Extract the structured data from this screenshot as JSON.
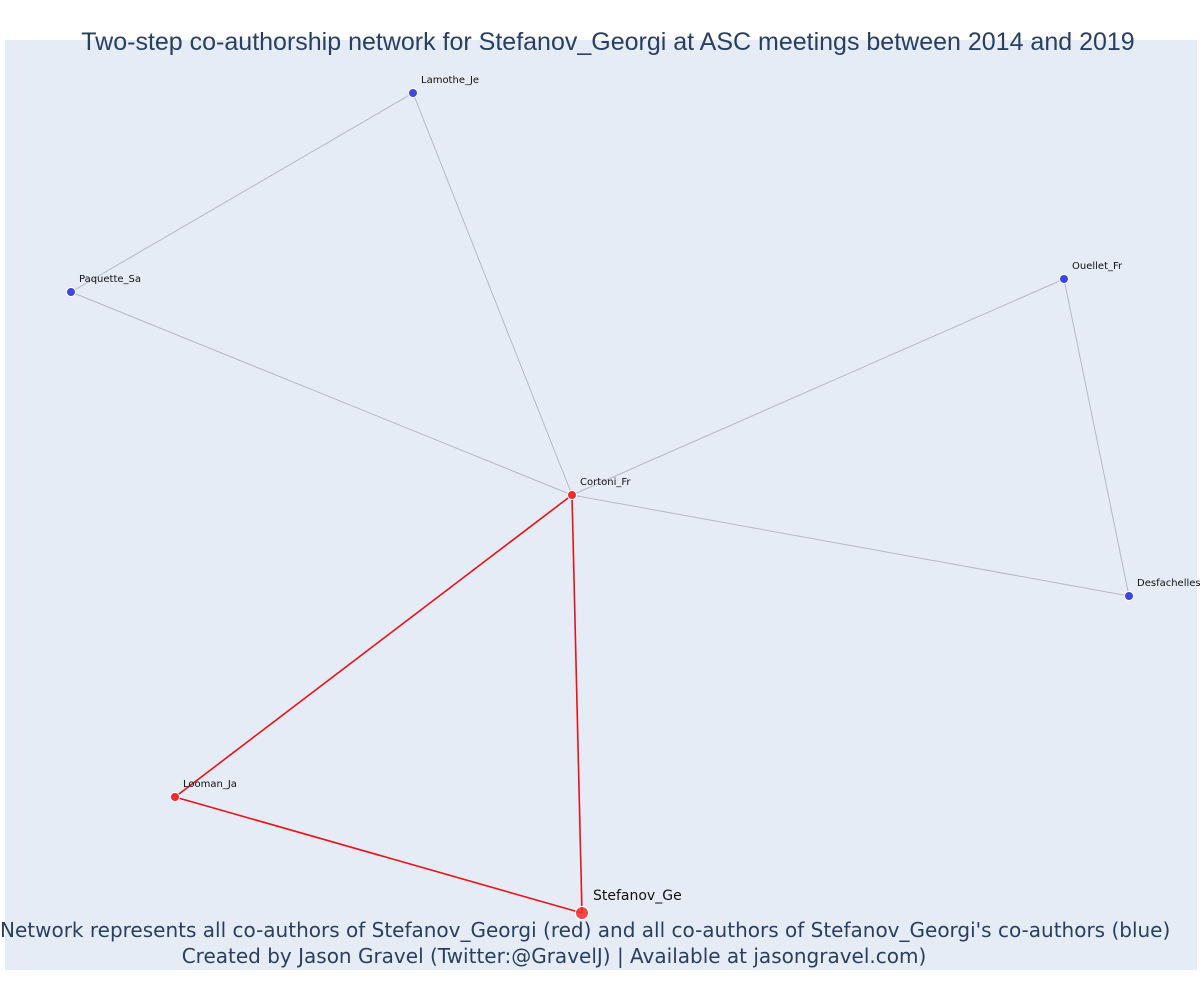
{
  "title": "Two-step co-authorship network for Stefanov_Georgi at ASC meetings between 2014 and 2019",
  "colors": {
    "background": "#e5ecf6",
    "title_text": "#2a3f5f",
    "red": "#ef2b2b",
    "blue": "#3f45e0",
    "red_edge": "#e8121a",
    "gray_edge": "#b5b8c8"
  },
  "nodes": [
    {
      "id": "lamothe",
      "label": "Lamothe_Je",
      "group": "blue"
    },
    {
      "id": "paquette",
      "label": "Paquette_Sa",
      "group": "blue"
    },
    {
      "id": "ouellet",
      "label": "Ouellet_Fr",
      "group": "blue"
    },
    {
      "id": "cortoni",
      "label": "Cortoni_Fr",
      "group": "red"
    },
    {
      "id": "desfachelles",
      "label": "Desfachelles",
      "group": "blue"
    },
    {
      "id": "looman",
      "label": "Looman_Ja",
      "group": "red"
    },
    {
      "id": "stefanov",
      "label": "Stefanov_Ge",
      "group": "red",
      "focal": true
    }
  ],
  "edges": [
    {
      "source": "lamothe",
      "target": "paquette",
      "group": "gray"
    },
    {
      "source": "lamothe",
      "target": "cortoni",
      "group": "gray"
    },
    {
      "source": "paquette",
      "target": "cortoni",
      "group": "gray"
    },
    {
      "source": "ouellet",
      "target": "cortoni",
      "group": "gray"
    },
    {
      "source": "ouellet",
      "target": "desfachelles",
      "group": "gray"
    },
    {
      "source": "cortoni",
      "target": "desfachelles",
      "group": "gray"
    },
    {
      "source": "cortoni",
      "target": "looman",
      "group": "red"
    },
    {
      "source": "cortoni",
      "target": "stefanov",
      "group": "red"
    },
    {
      "source": "looman",
      "target": "stefanov",
      "group": "red"
    }
  ],
  "caption": {
    "line1": "Network represents all co-authors of Stefanov_Georgi (red) and all co-authors of Stefanov_Georgi's co-authors (blue)",
    "line2": "Created by Jason Gravel (Twitter:@GravelJ) | Available at jasongravel.com)"
  }
}
